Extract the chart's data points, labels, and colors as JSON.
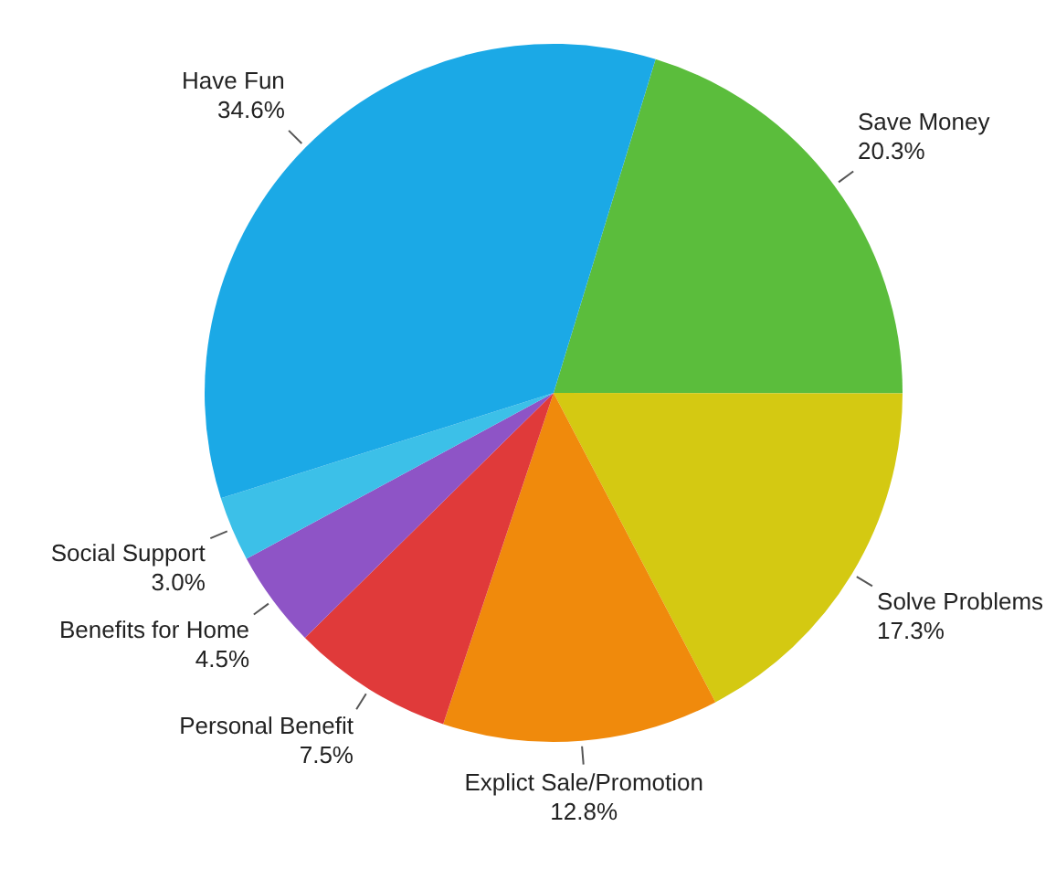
{
  "chart_data": {
    "type": "pie",
    "categories": [
      "Save Money",
      "Solve Problems",
      "Explict Sale/Promotion",
      "Personal Benefit",
      "Benefits for Home",
      "Social Support",
      "Have Fun"
    ],
    "values": [
      20.3,
      17.3,
      12.8,
      7.5,
      4.5,
      3.0,
      34.6
    ],
    "colors": [
      "#5bbd3c",
      "#d4c912",
      "#f08a0c",
      "#e03a3a",
      "#8e54c6",
      "#3cc0e8",
      "#1ba9e6"
    ],
    "value_labels": [
      "20.3%",
      "17.3%",
      "12.8%",
      "7.5%",
      "4.5%",
      "3.0%",
      "34.6%"
    ],
    "legend": false
  }
}
